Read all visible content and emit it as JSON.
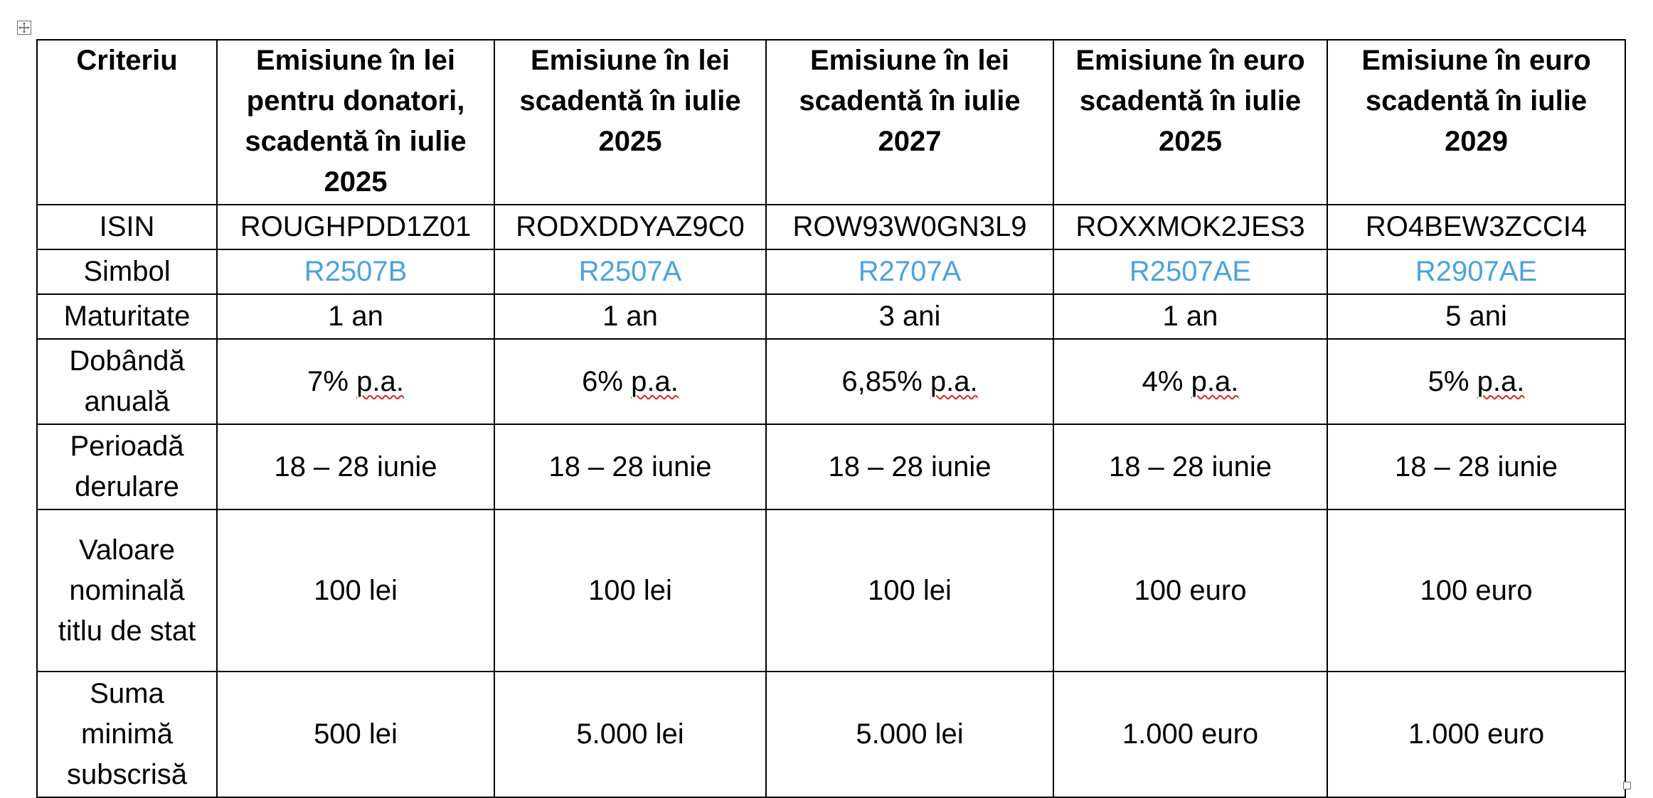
{
  "table": {
    "headers": [
      "Criteriu",
      "Emisiune în lei pentru donatori, scadentă în iulie 2025",
      "Emisiune în lei scadentă în iulie 2025",
      "Emisiune în lei scadentă în iulie 2027",
      "Emisiune în euro scadentă în iulie 2025",
      "Emisiune în euro scadentă în iulie 2029"
    ],
    "rows": [
      {
        "criterion": "ISIN",
        "values": [
          "ROUGHPDD1Z01",
          "RODXDDYAZ9C0",
          "ROW93W0GN3L9",
          "ROXXMOK2JES3",
          "RO4BEW3ZCCI4"
        ]
      },
      {
        "criterion": "Simbol",
        "values": [
          "R2507B",
          "R2507A",
          "R2707A",
          "R2507AE",
          "R2907AE"
        ]
      },
      {
        "criterion": "Maturitate",
        "values": [
          "1 an",
          "1 an",
          "3 ani",
          "1 an",
          "5 ani"
        ]
      },
      {
        "criterion": "Dobândă anuală",
        "values": [
          "7%",
          "6%",
          "6,85%",
          "4%",
          "5%"
        ],
        "suffix": "p.a."
      },
      {
        "criterion": "Perioadă derulare",
        "values": [
          "18 – 28 iunie",
          "18 – 28 iunie",
          "18 – 28 iunie",
          "18 – 28 iunie",
          "18 – 28 iunie"
        ]
      },
      {
        "criterion": "Valoare nominală titlu de stat",
        "values": [
          "100 lei",
          "100 lei",
          "100 lei",
          "100 euro",
          "100 euro"
        ]
      },
      {
        "criterion": "Suma minimă subscrisă",
        "values": [
          "500 lei",
          "5.000 lei",
          "5.000 lei",
          "1.000 euro",
          "1.000 euro"
        ]
      }
    ]
  },
  "colors": {
    "symbol_link": "#4aa3df",
    "spellcheck_underline": "#e02424",
    "border": "#000000"
  },
  "icons": {
    "move_handle": "move-cross-icon",
    "resize_handle": "resize-handle-icon"
  }
}
